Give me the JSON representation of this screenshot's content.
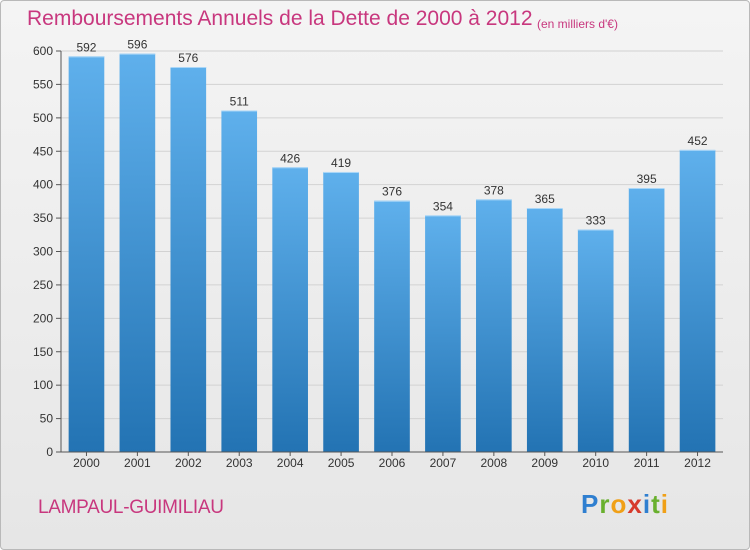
{
  "header": {
    "title": "Remboursements Annuels de la Dette de 2000 à 2012",
    "subtitle": "(en milliers d'€)"
  },
  "footer": {
    "commune": "LAMPAUL-GUIMILIAU",
    "brand": "Proxiti"
  },
  "colors": {
    "title": "#c8377e",
    "bar_top": "#5fb0ec",
    "bar_bottom": "#2373b3"
  },
  "chart_data": {
    "type": "bar",
    "title": "Remboursements Annuels de la Dette de 2000 à 2012",
    "subtitle": "(en milliers d'€)",
    "categories": [
      "2000",
      "2001",
      "2002",
      "2003",
      "2004",
      "2005",
      "2006",
      "2007",
      "2008",
      "2009",
      "2010",
      "2011",
      "2012"
    ],
    "values": [
      592,
      596,
      576,
      511,
      426,
      419,
      376,
      354,
      378,
      365,
      333,
      395,
      452
    ],
    "y_ticks": [
      0,
      50,
      100,
      150,
      200,
      250,
      300,
      350,
      400,
      450,
      500,
      550,
      600
    ],
    "ylim": [
      0,
      600
    ],
    "grid": true,
    "legend": "none"
  }
}
